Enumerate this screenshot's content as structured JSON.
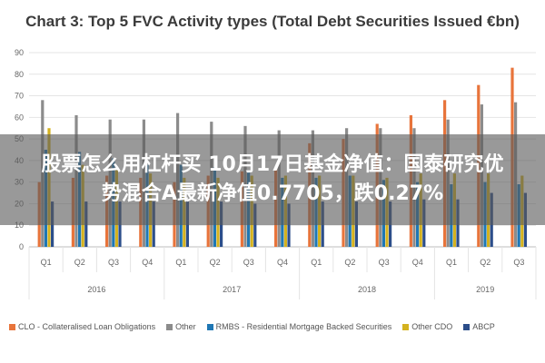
{
  "colors": {
    "CLO": "#e8743b",
    "Other": "#8c8c8c",
    "RMBS": "#1f77b4",
    "OtherCDO": "#d4b21f",
    "ABCP": "#2c4e8a",
    "grid": "#e4e4e4",
    "axis": "#bdbdbd",
    "text": "#666666"
  },
  "chart_data": {
    "type": "bar",
    "title": "Chart 3: Top 5 FVC Activity types (Total Debt Securities Issued €bn)",
    "ylim": [
      0,
      90
    ],
    "yticks": [
      "0",
      "10",
      "20",
      "30",
      "40",
      "50",
      "60",
      "70",
      "80",
      "90"
    ],
    "grid": true,
    "legend_position": "bottom",
    "categories": [
      "Q1",
      "Q2",
      "Q3",
      "Q4",
      "Q1",
      "Q2",
      "Q3",
      "Q4",
      "Q1",
      "Q2",
      "Q3",
      "Q4",
      "Q1",
      "Q2",
      "Q3"
    ],
    "year_groups": [
      {
        "label": "2016",
        "count": 4
      },
      {
        "label": "2017",
        "count": 4
      },
      {
        "label": "2018",
        "count": 4
      },
      {
        "label": "2019",
        "count": 3
      }
    ],
    "series": [
      {
        "key": "CLO",
        "name": "CLO - Collateralised Loan Obligations",
        "values": [
          30,
          32,
          33,
          32,
          30,
          33,
          35,
          37,
          48,
          50,
          57,
          61,
          68,
          75,
          83
        ]
      },
      {
        "key": "Other",
        "name": "Other",
        "values": [
          68,
          61,
          59,
          59,
          62,
          58,
          56,
          54,
          54,
          55,
          55,
          55,
          59,
          66,
          67
        ]
      },
      {
        "key": "RMBS",
        "name": "RMBS - Residential Mortgage Backed Securities",
        "values": [
          45,
          44,
          41,
          38,
          38,
          37,
          35,
          32,
          32,
          33,
          31,
          30,
          29,
          30,
          29
        ]
      },
      {
        "key": "OtherCDO",
        "name": "Other CDO",
        "values": [
          55,
          38,
          36,
          34,
          32,
          32,
          33,
          33,
          33,
          33,
          32,
          34,
          34,
          34,
          33
        ]
      },
      {
        "key": "ABCP",
        "name": "ABCP",
        "values": [
          21,
          21,
          21,
          21,
          21,
          21,
          20,
          20,
          21,
          21,
          21,
          22,
          22,
          25,
          25
        ]
      }
    ]
  },
  "overlay": {
    "line1": "股票怎么用杠杆买 10月17日基金净值：国泰研究优",
    "line2": "势混合A最新净值0.7705，跌0.27%"
  }
}
